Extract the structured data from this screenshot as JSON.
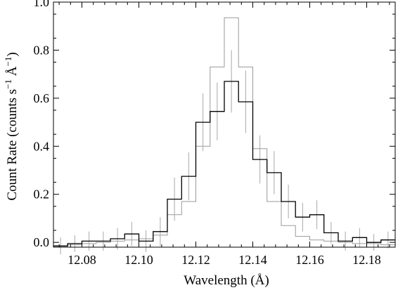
{
  "chart_data": {
    "type": "line",
    "title": "",
    "xlabel": "Wavelength (Å)",
    "ylabel_parts": {
      "main": "Count Rate (counts s",
      "exp1": "−1",
      "mid": " Å",
      "exp2": "−1",
      "close": ")"
    },
    "xlim": [
      12.07,
      12.19
    ],
    "ylim": [
      -0.02,
      1.0
    ],
    "xticks": [
      12.08,
      12.1,
      12.12,
      12.14,
      12.16,
      12.18
    ],
    "xtick_labels": [
      "12.08",
      "12.10",
      "12.12",
      "12.14",
      "12.16",
      "12.18"
    ],
    "yticks": [
      0.0,
      0.2,
      0.4,
      0.6,
      0.8,
      1.0
    ],
    "ytick_labels": [
      "0.0",
      "0.2",
      "0.4",
      "0.6",
      "0.8",
      "1.0"
    ],
    "grid": false,
    "bin_edges": [
      12.07,
      12.075,
      12.08,
      12.085,
      12.09,
      12.095,
      12.1,
      12.105,
      12.11,
      12.115,
      12.12,
      12.125,
      12.13,
      12.135,
      12.14,
      12.145,
      12.15,
      12.155,
      12.16,
      12.165,
      12.17,
      12.175,
      12.18,
      12.185,
      12.19
    ],
    "series": [
      {
        "style": "histogram",
        "color": "#000000",
        "values": [
          -0.015,
          -0.005,
          0.005,
          0.005,
          0.015,
          0.035,
          0.005,
          0.045,
          0.18,
          0.275,
          0.5,
          0.545,
          0.67,
          0.585,
          0.345,
          0.29,
          0.17,
          0.105,
          0.115,
          0.04,
          0.005,
          0.02,
          0.0,
          0.01
        ],
        "errors": [
          0.035,
          0.035,
          0.04,
          0.04,
          0.045,
          0.05,
          0.045,
          0.06,
          0.09,
          0.1,
          0.12,
          0.12,
          0.13,
          0.13,
          0.1,
          0.09,
          0.07,
          0.06,
          0.06,
          0.045,
          0.04,
          0.04,
          0.035,
          0.035
        ]
      },
      {
        "style": "histogram",
        "color": "#9a9a9a",
        "values": [
          -0.015,
          -0.01,
          -0.005,
          0.0,
          0.005,
          0.01,
          0.015,
          0.03,
          0.115,
          0.17,
          0.4,
          0.73,
          0.935,
          0.73,
          0.39,
          0.17,
          0.07,
          0.025,
          0.01,
          0.005,
          0.0,
          -0.005,
          -0.005,
          -0.01
        ]
      }
    ]
  }
}
